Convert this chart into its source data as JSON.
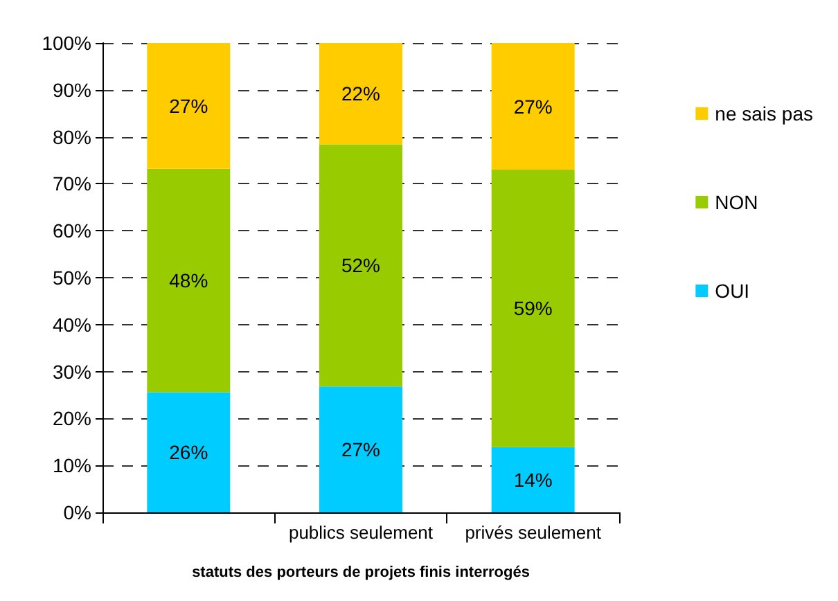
{
  "chart_data": {
    "type": "bar",
    "stacked": true,
    "xlabel": "statuts des porteurs de projets finis interrogés",
    "categories": [
      null,
      "publics seulement",
      "privés seulement"
    ],
    "series": [
      {
        "name": "OUI",
        "color": "#00ccff",
        "values": [
          25.6,
          26.8,
          13.9
        ],
        "value_labels": [
          "26%",
          "27%",
          "14%"
        ]
      },
      {
        "name": "NON",
        "color": "#99cc00",
        "values": [
          47.6,
          51.6,
          59.1
        ],
        "value_labels": [
          "48%",
          "52%",
          "59%"
        ]
      },
      {
        "name": "ne sais pas",
        "color": "#ffcc00",
        "values": [
          26.8,
          21.6,
          27.0
        ],
        "value_labels": [
          "27%",
          "22%",
          "27%"
        ]
      }
    ],
    "ylim": [
      0,
      100
    ],
    "yticks": [
      {
        "value": 0,
        "label": "0%"
      },
      {
        "value": 10,
        "label": "10%"
      },
      {
        "value": 20,
        "label": "20%"
      },
      {
        "value": 30,
        "label": "30%"
      },
      {
        "value": 40,
        "label": "40%"
      },
      {
        "value": 50,
        "label": "50%"
      },
      {
        "value": 60,
        "label": "60%"
      },
      {
        "value": 70,
        "label": "70%"
      },
      {
        "value": 80,
        "label": "80%"
      },
      {
        "value": 90,
        "label": "90%"
      },
      {
        "value": 100,
        "label": "100%"
      }
    ],
    "grid": "y",
    "legend": "right"
  }
}
